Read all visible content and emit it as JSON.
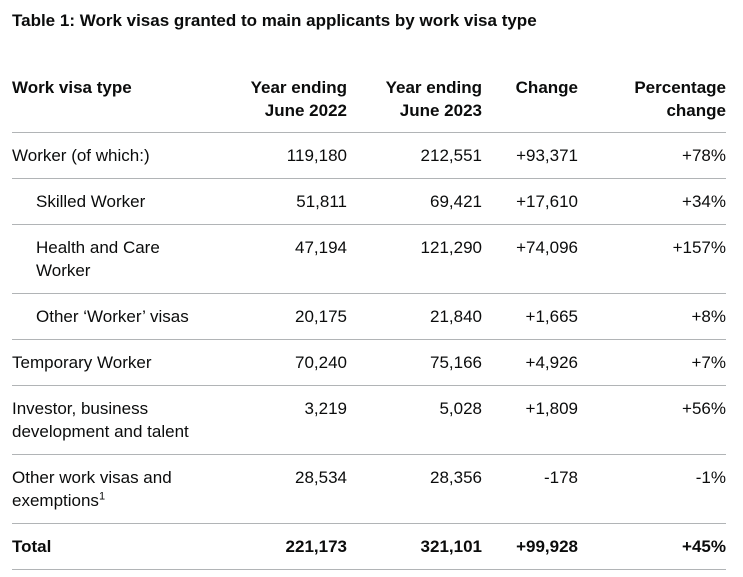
{
  "page": {
    "title": "Table 1: Work visas granted to main applicants by work visa type"
  },
  "table": {
    "columns": [
      {
        "label": "Work visa type"
      },
      {
        "label": "Year ending June 2022"
      },
      {
        "label": "Year ending June 2023"
      },
      {
        "label": "Change"
      },
      {
        "label": "Percentage change"
      }
    ],
    "rows": [
      {
        "label": "Worker (of which:)",
        "indent": false,
        "bold": false,
        "footnote": "",
        "values": [
          "119,180",
          "212,551",
          "+93,371",
          "+78%"
        ]
      },
      {
        "label": "Skilled Worker",
        "indent": true,
        "bold": false,
        "footnote": "",
        "values": [
          "51,811",
          "69,421",
          "+17,610",
          "+34%"
        ]
      },
      {
        "label": "Health and Care Worker",
        "indent": true,
        "bold": false,
        "footnote": "",
        "values": [
          "47,194",
          "121,290",
          "+74,096",
          "+157%"
        ]
      },
      {
        "label": "Other ‘Worker’ visas",
        "indent": true,
        "bold": false,
        "footnote": "",
        "values": [
          "20,175",
          "21,840",
          "+1,665",
          "+8%"
        ]
      },
      {
        "label": "Temporary Worker",
        "indent": false,
        "bold": false,
        "footnote": "",
        "values": [
          "70,240",
          "75,166",
          "+4,926",
          "+7%"
        ]
      },
      {
        "label": "Investor, business development and talent",
        "indent": false,
        "bold": false,
        "footnote": "",
        "values": [
          "3,219",
          "5,028",
          "+1,809",
          "+56%"
        ]
      },
      {
        "label": "Other work visas and exemptions",
        "indent": false,
        "bold": false,
        "footnote": "1",
        "values": [
          "28,534",
          "28,356",
          "-178",
          "-1%"
        ]
      },
      {
        "label": "Total",
        "indent": false,
        "bold": true,
        "footnote": "",
        "values": [
          "221,173",
          "321,101",
          "+99,928",
          "+45%"
        ]
      }
    ]
  },
  "colors": {
    "text": "#0b0c0c",
    "border": "#b1b4b6",
    "background": "#ffffff"
  }
}
